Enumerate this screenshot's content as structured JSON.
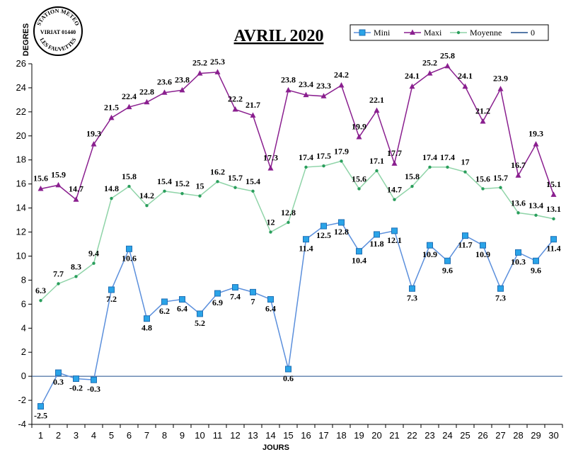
{
  "chart_data": {
    "type": "line",
    "title": "AVRIL 2020",
    "xlabel": "JOURS",
    "ylabel": "DEGRES",
    "x": [
      1,
      2,
      3,
      4,
      5,
      6,
      7,
      8,
      9,
      10,
      11,
      12,
      13,
      14,
      15,
      16,
      17,
      18,
      19,
      20,
      21,
      22,
      23,
      24,
      25,
      26,
      27,
      28,
      29,
      30
    ],
    "ylim": [
      -4,
      26
    ],
    "yticks": [
      -4,
      -2,
      0,
      2,
      4,
      6,
      8,
      10,
      12,
      14,
      16,
      18,
      20,
      22,
      24,
      26
    ],
    "legend_position": "top-right",
    "grid": false,
    "series": [
      {
        "name": "Mini",
        "color": "#5b8fdc",
        "marker": "square",
        "values": [
          -2.5,
          0.3,
          -0.2,
          -0.3,
          7.2,
          10.6,
          4.8,
          6.2,
          6.4,
          5.2,
          6.9,
          7.4,
          7,
          6.4,
          0.6,
          11.4,
          12.5,
          12.8,
          10.4,
          11.8,
          12.1,
          7.3,
          10.9,
          9.6,
          11.7,
          10.9,
          7.3,
          10.3,
          9.6,
          11.4
        ]
      },
      {
        "name": "Maxi",
        "color": "#8a1f8f",
        "marker": "triangle",
        "values": [
          15.6,
          15.9,
          14.7,
          19.3,
          21.5,
          22.4,
          22.8,
          23.6,
          23.8,
          25.2,
          25.3,
          22.2,
          21.7,
          17.3,
          23.8,
          23.4,
          23.3,
          24.2,
          19.9,
          22.1,
          17.7,
          24.1,
          25.2,
          25.8,
          24.1,
          21.2,
          23.9,
          16.7,
          19.3,
          15.1
        ]
      },
      {
        "name": "Moyenne",
        "color": "#8fd4a8",
        "marker": "dot",
        "values": [
          6.3,
          7.7,
          8.3,
          9.4,
          14.8,
          15.8,
          14.2,
          15.4,
          15.2,
          15,
          16.2,
          15.7,
          15.4,
          12,
          12.8,
          17.4,
          17.5,
          17.9,
          15.6,
          17.1,
          14.7,
          15.8,
          17.4,
          17.4,
          17,
          15.6,
          15.7,
          13.6,
          13.4,
          13.1
        ]
      },
      {
        "name": "0",
        "color": "#1f4e8c",
        "marker": "none",
        "values": [
          0,
          0,
          0,
          0,
          0,
          0,
          0,
          0,
          0,
          0,
          0,
          0,
          0,
          0,
          0,
          0,
          0,
          0,
          0,
          0,
          0,
          0,
          0,
          0,
          0,
          0,
          0,
          0,
          0,
          0
        ]
      }
    ]
  },
  "logo": {
    "line1": "STATION METEO",
    "line2": "VIRIAT 01440",
    "line3": "LES FAUVETTES"
  }
}
